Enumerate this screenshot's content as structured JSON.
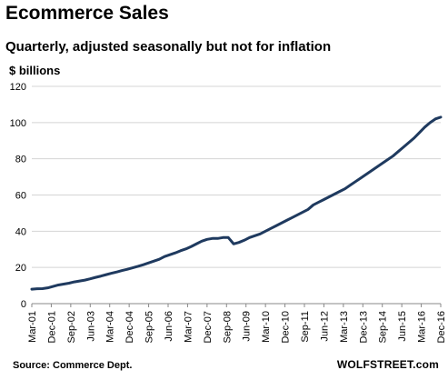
{
  "chart_data": {
    "type": "line",
    "title": "Ecommerce Sales",
    "subtitle": "Quarterly, adjusted seasonally but not for inflation",
    "ylabel": "$ billions",
    "xlabel": "",
    "ylim": [
      0,
      120
    ],
    "yticks": [
      0,
      20,
      40,
      60,
      80,
      100,
      120
    ],
    "grid": true,
    "legend": "none",
    "line_color": "#1f3a5f",
    "x_tick_labels": [
      "Mar-01",
      "Dec-01",
      "Sep-02",
      "Jun-03",
      "Mar-04",
      "Dec-04",
      "Sep-05",
      "Jun-06",
      "Mar-07",
      "Dec-07",
      "Sep-08",
      "Jun-09",
      "Mar-10",
      "Dec-10",
      "Sep-11",
      "Jun-12",
      "Mar-13",
      "Dec-13",
      "Sep-14",
      "Jun-15",
      "Mar-16",
      "Dec-16"
    ],
    "series": [
      {
        "values": [
          8.0,
          8.2,
          8.3,
          8.7,
          9.5,
          10.3,
          10.8,
          11.3,
          12.0,
          12.5,
          13.0,
          13.7,
          14.5,
          15.2,
          16.0,
          16.8,
          17.5,
          18.3,
          19.0,
          19.8,
          20.6,
          21.5,
          22.5,
          23.5,
          24.5,
          26.0,
          27.0,
          28.0,
          29.2,
          30.2,
          31.5,
          33.0,
          34.5,
          35.5,
          36.0,
          36.0,
          36.5,
          36.5,
          33.0,
          33.8,
          35.0,
          36.5,
          37.5,
          38.5,
          40.0,
          41.5,
          43.0,
          44.5,
          46.0,
          47.5,
          49.0,
          50.5,
          52.0,
          54.5,
          56.0,
          57.5,
          59.0,
          60.5,
          62.0,
          63.5,
          65.5,
          67.5,
          69.5,
          71.5,
          73.5,
          75.5,
          77.5,
          79.5,
          81.5,
          84.0,
          86.5,
          89.0,
          91.5,
          94.5,
          97.5,
          100.0,
          102.0,
          103.0
        ]
      }
    ]
  },
  "footer": {
    "source": "Source: Commerce Dept.",
    "brand": "WOLFSTREET.com"
  }
}
